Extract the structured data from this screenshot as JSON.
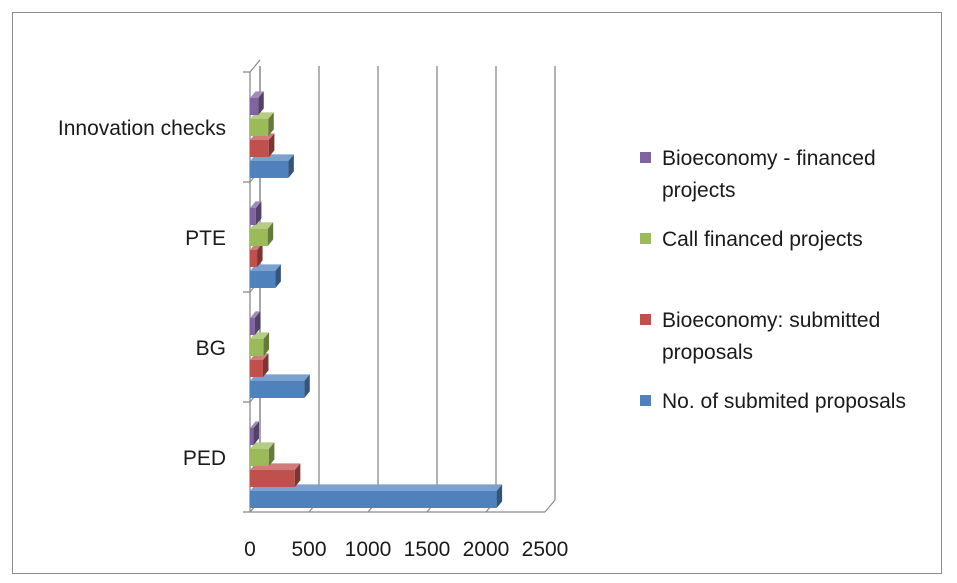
{
  "chart_data": {
    "type": "bar",
    "orientation": "horizontal",
    "style": "3d-clustered",
    "categories": [
      "PED",
      "BG",
      "PTE",
      "Innovation checks"
    ],
    "series": [
      {
        "name": "No. of submited proposals",
        "color": "#4f81bd",
        "values": [
          2090,
          460,
          215,
          325
        ]
      },
      {
        "name": "Bioeconomy: submitted proposals",
        "color": "#c0504d",
        "values": [
          380,
          110,
          60,
          160
        ]
      },
      {
        "name": "Call financed projects",
        "color": "#9bbb59",
        "values": [
          160,
          115,
          150,
          155
        ]
      },
      {
        "name": "Bioeconomy - financed projects",
        "color": "#8064a2",
        "values": [
          30,
          40,
          50,
          70
        ]
      }
    ],
    "xlim": [
      0,
      2500
    ],
    "xticks": [
      "0",
      "500",
      "1000",
      "1500",
      "2000",
      "2500"
    ],
    "grid": true,
    "legend_position": "right",
    "legend": [
      {
        "lines": [
          "Bioeconomy - financed",
          "projects"
        ],
        "color": "#8064a2"
      },
      {
        "lines": [
          "Call financed projects"
        ],
        "color": "#9bbb59"
      },
      {
        "lines": [
          "Bioeconomy: submitted",
          "proposals"
        ],
        "color": "#c0504d"
      },
      {
        "lines": [
          "No. of submited proposals"
        ],
        "color": "#4f81bd"
      }
    ]
  }
}
